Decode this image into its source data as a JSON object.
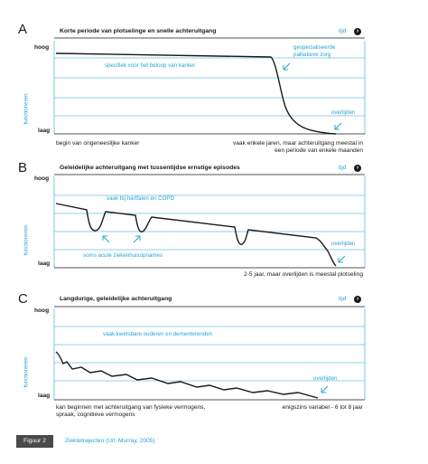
{
  "panels": [
    {
      "letter": "A",
      "title": "Korte periode van plotselinge en snelle achteruitgang",
      "time_label": "tijd",
      "y_high": "hoog",
      "y_low": "laag",
      "y_axis": "functioneren",
      "notes": [
        "specifiek voor het beloop van kanker",
        "gespecialiseerde",
        "palliatieve zorg",
        "overlijden"
      ],
      "bottom_left": "begin van ongeneeslijke kanker",
      "bottom_right_1": "vaak enkele jaren, maar achteruitgang meestal in",
      "bottom_right_2": "een periode van enkele maanden"
    },
    {
      "letter": "B",
      "title": "Geleidelijke achteruitgang met tussentijdse ernstige episodes",
      "time_label": "tijd",
      "y_high": "hoog",
      "y_low": "laag",
      "y_axis": "functioneren",
      "notes": [
        "vaak bij hartfalen en COPD",
        "soms acute ziekenhuisopnames",
        "overlijden"
      ],
      "bottom_right_1": "2-5 jaar, maar overlijden is meestal plotseling"
    },
    {
      "letter": "C",
      "title": "Langdurige, geleidelijke achteruitgang",
      "time_label": "tijd",
      "y_high": "hoog",
      "y_low": "laag",
      "y_axis": "functioneren",
      "notes": [
        "vaak kwetsbare ouderen en dementerenden",
        "overlijden"
      ],
      "bottom_left_1": "kan beginnen met achteruitgang van fysieke vermogens,",
      "bottom_left_2": "spraak, cognitieve vermogens",
      "bottom_right_1": "enigszins variabel - 6 tot 8 jaar"
    }
  ],
  "footer": {
    "badge": "Figuur 2",
    "caption": "Ziektetrajecten (Uit: Murray, 2005)"
  },
  "colors": {
    "accent": "#29a3d6",
    "line": "#1a1a1a",
    "badge": "#4a4a4a"
  }
}
